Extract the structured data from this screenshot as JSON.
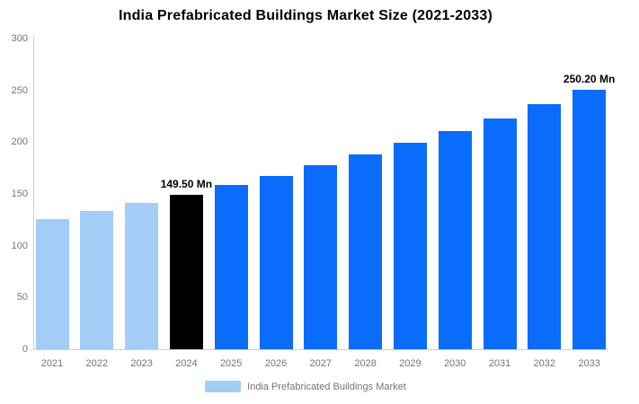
{
  "title": "India Prefabricated Buildings Market Size (2021-2033)",
  "legend": {
    "label": "India Prefabricated Buildings Market",
    "swatch_color": "#A3CCF7"
  },
  "colors": {
    "historical_bar": "#A3CCF7",
    "highlight_bar": "#000000",
    "forecast_bar": "#0A6CFB",
    "axis_line": "#cfcfcf",
    "tick_text": "#757575",
    "annotation_text": "#000000",
    "background": "#ffffff"
  },
  "chart_data": {
    "type": "bar",
    "title": "India Prefabricated Buildings Market Size (2021-2033)",
    "categories": [
      "2021",
      "2022",
      "2023",
      "2024",
      "2025",
      "2026",
      "2027",
      "2028",
      "2029",
      "2030",
      "2031",
      "2032",
      "2033"
    ],
    "values": [
      125.9,
      133.3,
      141.2,
      149.5,
      158.3,
      167.6,
      177.5,
      188.0,
      199.0,
      210.8,
      223.2,
      236.3,
      250.2
    ],
    "unit": "Mn",
    "point_labels": [
      "",
      "",
      "",
      "149.50 Mn",
      "",
      "",
      "",
      "",
      "",
      "",
      "",
      "",
      "250.20 Mn"
    ],
    "bar_colors": [
      "#A3CCF7",
      "#A3CCF7",
      "#A3CCF7",
      "#000000",
      "#0A6CFB",
      "#0A6CFB",
      "#0A6CFB",
      "#0A6CFB",
      "#0A6CFB",
      "#0A6CFB",
      "#0A6CFB",
      "#0A6CFB",
      "#0A6CFB"
    ],
    "xlabel": "",
    "ylabel": "",
    "ylim": [
      0,
      300
    ],
    "yticks": [
      0,
      50,
      100,
      150,
      200,
      250,
      300
    ],
    "grid": false,
    "legend_position": "bottom",
    "legend_entries": [
      "India Prefabricated Buildings Market"
    ]
  }
}
